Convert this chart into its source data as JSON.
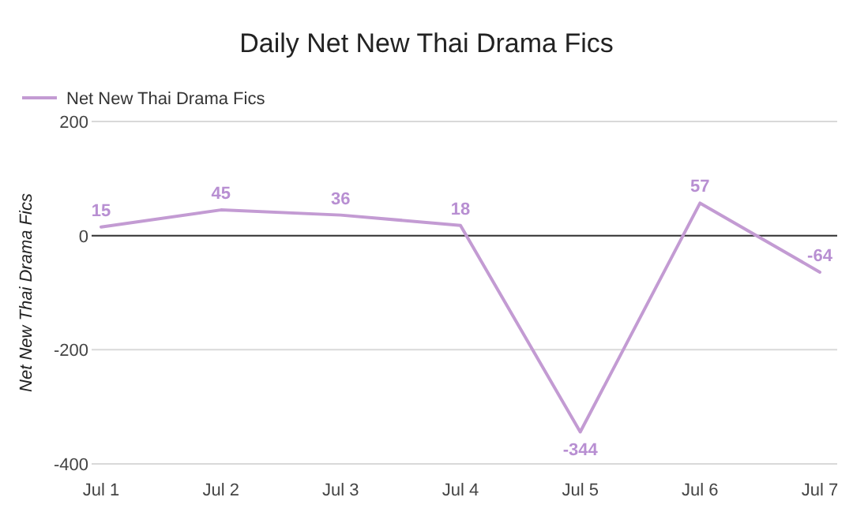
{
  "chart_data": {
    "type": "line",
    "title": "Daily Net New Thai Drama Fics",
    "ylabel": "Net New Thai Drama Fics",
    "categories": [
      "Jul 1",
      "Jul 2",
      "Jul 3",
      "Jul 4",
      "Jul 5",
      "Jul 6",
      "Jul 7"
    ],
    "series": [
      {
        "name": "Net New Thai Drama Fics",
        "color": "#c39bd3",
        "values": [
          15,
          45,
          36,
          18,
          -344,
          57,
          -64
        ]
      }
    ],
    "ylim": [
      -400,
      200
    ],
    "yticks": [
      -400,
      -200,
      0,
      200
    ],
    "grid": "y",
    "legend": "top left",
    "data_labels": true,
    "marker": "none",
    "line_style": "solid"
  }
}
